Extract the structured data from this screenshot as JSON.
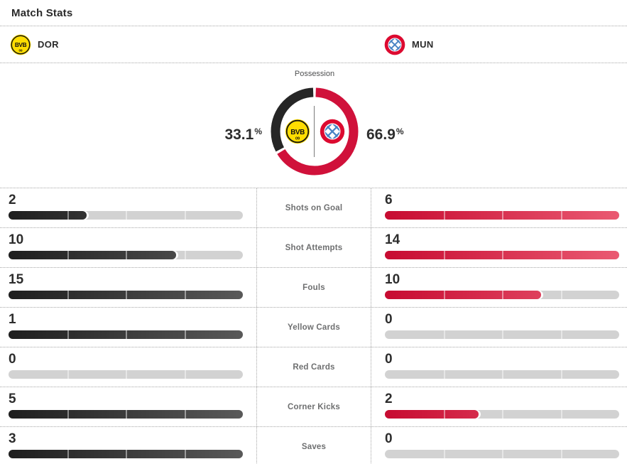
{
  "title": "Match Stats",
  "teams": {
    "home": {
      "abbrev": "DOR"
    },
    "away": {
      "abbrev": "MUN"
    }
  },
  "possession": {
    "label": "Possession",
    "home": {
      "value": "33.1",
      "unit": "%"
    },
    "away": {
      "value": "66.9",
      "unit": "%"
    }
  },
  "stats": {
    "rows": [
      {
        "label": "Shots on Goal",
        "home": 2,
        "away": 6
      },
      {
        "label": "Shot Attempts",
        "home": 10,
        "away": 14
      },
      {
        "label": "Fouls",
        "home": 15,
        "away": 10
      },
      {
        "label": "Yellow Cards",
        "home": 1,
        "away": 0
      },
      {
        "label": "Red Cards",
        "home": 0,
        "away": 0
      },
      {
        "label": "Corner Kicks",
        "home": 5,
        "away": 2
      },
      {
        "label": "Saves",
        "home": 3,
        "away": 0
      }
    ]
  },
  "colors": {
    "home_bar_gradient": [
      "#1e1e1e",
      "#595959"
    ],
    "away_bar_gradient": [
      "#c70b31",
      "#ea5a72"
    ],
    "bar_track": "#d2d2d2",
    "home_donut": "#262626",
    "away_donut": "#d0113a",
    "bvb_yellow": "#ffdd00",
    "bayern_red": "#dc0a30",
    "bayern_blue": "#4a84c4",
    "text_dark": "#2a2a2a",
    "text_gray": "#6e6f70"
  },
  "chart_data": [
    {
      "type": "pie",
      "title": "Possession",
      "labels": [
        "DOR",
        "MUN"
      ],
      "values": [
        33.1,
        66.9
      ],
      "colors": [
        "#262626",
        "#d0113a"
      ],
      "style": "donut, MUN slice starts at 12 o'clock clockwise, team badges inside, vertical divider in hole"
    },
    {
      "type": "bar",
      "title": "Match Stats",
      "categories": [
        "Shots on Goal",
        "Shot Attempts",
        "Fouls",
        "Yellow Cards",
        "Red Cards",
        "Corner Kicks",
        "Saves"
      ],
      "series": [
        {
          "name": "DOR",
          "values": [
            2,
            10,
            15,
            1,
            0,
            5,
            3
          ]
        },
        {
          "name": "MUN",
          "values": [
            6,
            14,
            10,
            0,
            0,
            2,
            0
          ]
        }
      ],
      "layout": "horizontal paired bars, each pair scaled to max of the two values, DOR dark-gray gradient on left, MUN red gradient on right, gray track behind"
    }
  ]
}
